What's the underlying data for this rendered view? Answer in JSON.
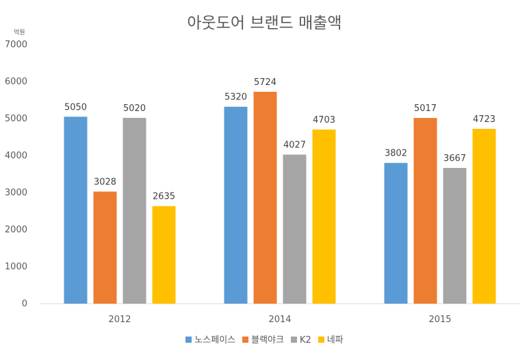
{
  "chart_data": {
    "type": "bar",
    "title": "아웃도어 브랜드 매출액",
    "ylabel": "억원",
    "xlabel": "",
    "ylim": [
      0,
      7000
    ],
    "yticks": [
      0,
      1000,
      2000,
      3000,
      4000,
      5000,
      6000,
      7000
    ],
    "grid": false,
    "legend_position": "bottom",
    "categories": [
      "2012",
      "2014",
      "2015"
    ],
    "series": [
      {
        "name": "노스페이스",
        "color": "#5B9BD5",
        "values": [
          5050,
          5320,
          3802
        ]
      },
      {
        "name": "블랙야크",
        "color": "#ED7D31",
        "values": [
          3028,
          5724,
          5017
        ]
      },
      {
        "name": "K2",
        "color": "#A5A5A5",
        "values": [
          5020,
          4027,
          3667
        ]
      },
      {
        "name": "네파",
        "color": "#FFC000",
        "values": [
          2635,
          4703,
          4723
        ]
      }
    ]
  }
}
